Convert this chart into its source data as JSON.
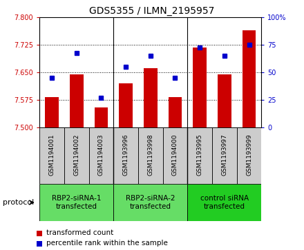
{
  "title": "GDS5355 / ILMN_2195957",
  "samples": [
    "GSM1194001",
    "GSM1194002",
    "GSM1194003",
    "GSM1193996",
    "GSM1193998",
    "GSM1194000",
    "GSM1193995",
    "GSM1193997",
    "GSM1193999"
  ],
  "bar_values": [
    7.583,
    7.644,
    7.555,
    7.621,
    7.662,
    7.583,
    7.718,
    7.645,
    7.765
  ],
  "dot_values": [
    45,
    68,
    27,
    55,
    65,
    45,
    73,
    65,
    75
  ],
  "groups": [
    {
      "label": "RBP2-siRNA-1\ntransfected",
      "start": 0,
      "end": 3,
      "color": "#66DD66"
    },
    {
      "label": "RBP2-siRNA-2\ntransfected",
      "start": 3,
      "end": 6,
      "color": "#66DD66"
    },
    {
      "label": "control siRNA\ntransfected",
      "start": 6,
      "end": 9,
      "color": "#22CC22"
    }
  ],
  "ylim_left": [
    7.5,
    7.8
  ],
  "ylim_right": [
    0,
    100
  ],
  "yticks_left": [
    7.5,
    7.575,
    7.65,
    7.725,
    7.8
  ],
  "yticks_right": [
    0,
    25,
    50,
    75,
    100
  ],
  "bar_color": "#CC0000",
  "dot_color": "#0000CC",
  "bg_color": "#CCCCCC",
  "plot_bg": "#FFFFFF",
  "legend_bar_label": "transformed count",
  "legend_dot_label": "percentile rank within the sample",
  "protocol_label": "protocol"
}
